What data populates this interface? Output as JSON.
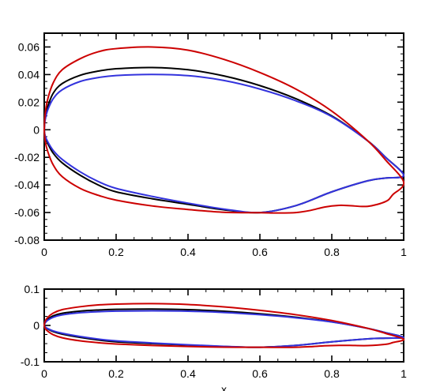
{
  "chart_data": [
    {
      "type": "line",
      "title": "",
      "xlabel": "",
      "ylabel": "",
      "xlim": [
        0,
        1
      ],
      "ylim": [
        -0.08,
        0.07
      ],
      "xticks": [
        "0",
        "0.2",
        "0.4",
        "0.6",
        "0.8",
        "1"
      ],
      "yticks": [
        "-0.08",
        "-0.06",
        "-0.04",
        "-0.02",
        "0",
        "0.02",
        "0.04",
        "0.06"
      ],
      "grid": false,
      "series": [
        {
          "color": "#000000",
          "x": [
            0,
            0.0025,
            0.01,
            0.025,
            0.05,
            0.1,
            0.15,
            0.2,
            0.3,
            0.4,
            0.5,
            0.6,
            0.7,
            0.8,
            0.9,
            0.95,
            1.0,
            0.95,
            0.9,
            0.8,
            0.7,
            0.6,
            0.5,
            0.4,
            0.3,
            0.2,
            0.15,
            0.1,
            0.05,
            0.025,
            0.01,
            0.0025,
            0
          ],
          "y": [
            0,
            0.0085,
            0.017,
            0.0265,
            0.0335,
            0.0395,
            0.0425,
            0.0442,
            0.0451,
            0.0435,
            0.039,
            0.032,
            0.0225,
            0.01,
            -0.008,
            -0.02,
            -0.033,
            -0.035,
            -0.037,
            -0.045,
            -0.055,
            -0.06,
            -0.058,
            -0.054,
            -0.05,
            -0.045,
            -0.04,
            -0.033,
            -0.024,
            -0.017,
            -0.01,
            -0.005,
            0
          ]
        },
        {
          "color": "#3333dd",
          "x": [
            0,
            0.0025,
            0.01,
            0.025,
            0.05,
            0.1,
            0.15,
            0.2,
            0.3,
            0.4,
            0.5,
            0.6,
            0.7,
            0.8,
            0.9,
            0.95,
            1.0,
            0.95,
            0.9,
            0.8,
            0.7,
            0.6,
            0.5,
            0.4,
            0.3,
            0.2,
            0.15,
            0.1,
            0.05,
            0.025,
            0.01,
            0.0025,
            0
          ],
          "y": [
            0,
            0.007,
            0.0145,
            0.0225,
            0.029,
            0.035,
            0.0378,
            0.0393,
            0.0401,
            0.0392,
            0.0357,
            0.0295,
            0.021,
            0.0095,
            -0.0081,
            -0.0201,
            -0.033,
            -0.035,
            -0.037,
            -0.045,
            -0.055,
            -0.06,
            -0.0575,
            -0.0532,
            -0.0483,
            -0.0425,
            -0.0375,
            -0.0305,
            -0.0215,
            -0.015,
            -0.0088,
            -0.0043,
            0
          ]
        },
        {
          "color": "#cc0000",
          "x": [
            0,
            0.0025,
            0.01,
            0.025,
            0.05,
            0.1,
            0.15,
            0.2,
            0.3,
            0.4,
            0.5,
            0.6,
            0.7,
            0.8,
            0.9,
            0.95,
            1.0,
            0.97,
            0.95,
            0.9,
            0.85,
            0.82,
            0.78,
            0.74,
            0.7,
            0.65,
            0.6,
            0.5,
            0.4,
            0.3,
            0.2,
            0.15,
            0.1,
            0.05,
            0.025,
            0.01,
            0.0025,
            0
          ],
          "y": [
            0,
            0.0115,
            0.0225,
            0.034,
            0.0435,
            0.0515,
            0.0565,
            0.0588,
            0.06,
            0.0577,
            0.051,
            0.0415,
            0.0295,
            0.0135,
            -0.008,
            -0.022,
            -0.038,
            -0.047,
            -0.052,
            -0.0555,
            -0.055,
            -0.0548,
            -0.056,
            -0.0585,
            -0.06,
            -0.0603,
            -0.0601,
            -0.0598,
            -0.0578,
            -0.0552,
            -0.051,
            -0.0475,
            -0.0425,
            -0.034,
            -0.0255,
            -0.016,
            -0.008,
            0
          ]
        }
      ]
    },
    {
      "type": "line",
      "title": "",
      "xlabel": "x",
      "ylabel": "",
      "xlim": [
        0,
        1
      ],
      "ylim": [
        -0.1,
        0.1
      ],
      "xticks": [
        "0",
        "0.2",
        "0.4",
        "0.6",
        "0.8",
        "1"
      ],
      "yticks": [
        "-0.1",
        "0",
        "0.1"
      ],
      "grid": false,
      "series": [
        {
          "color": "#000000",
          "x": [
            0,
            0.0025,
            0.01,
            0.025,
            0.05,
            0.1,
            0.15,
            0.2,
            0.3,
            0.4,
            0.5,
            0.6,
            0.7,
            0.8,
            0.9,
            0.95,
            1.0,
            0.95,
            0.9,
            0.8,
            0.7,
            0.6,
            0.5,
            0.4,
            0.3,
            0.2,
            0.15,
            0.1,
            0.05,
            0.025,
            0.01,
            0.0025,
            0
          ],
          "y": [
            0,
            0.0085,
            0.017,
            0.0265,
            0.0335,
            0.0395,
            0.0425,
            0.0442,
            0.0451,
            0.0435,
            0.039,
            0.032,
            0.0225,
            0.01,
            -0.008,
            -0.02,
            -0.033,
            -0.035,
            -0.037,
            -0.045,
            -0.055,
            -0.06,
            -0.058,
            -0.054,
            -0.05,
            -0.045,
            -0.04,
            -0.033,
            -0.024,
            -0.017,
            -0.01,
            -0.005,
            0
          ]
        },
        {
          "color": "#3333dd",
          "x": [
            0,
            0.0025,
            0.01,
            0.025,
            0.05,
            0.1,
            0.15,
            0.2,
            0.3,
            0.4,
            0.5,
            0.6,
            0.7,
            0.8,
            0.9,
            0.95,
            1.0,
            0.95,
            0.9,
            0.8,
            0.7,
            0.6,
            0.5,
            0.4,
            0.3,
            0.2,
            0.15,
            0.1,
            0.05,
            0.025,
            0.01,
            0.0025,
            0
          ],
          "y": [
            0,
            0.007,
            0.0145,
            0.0225,
            0.029,
            0.035,
            0.0378,
            0.0393,
            0.0401,
            0.0392,
            0.0357,
            0.0295,
            0.021,
            0.0095,
            -0.0081,
            -0.0201,
            -0.033,
            -0.035,
            -0.037,
            -0.045,
            -0.055,
            -0.06,
            -0.0575,
            -0.0532,
            -0.0483,
            -0.0425,
            -0.0375,
            -0.0305,
            -0.0215,
            -0.015,
            -0.0088,
            -0.0043,
            0
          ]
        },
        {
          "color": "#cc0000",
          "x": [
            0,
            0.0025,
            0.01,
            0.025,
            0.05,
            0.1,
            0.15,
            0.2,
            0.3,
            0.4,
            0.5,
            0.6,
            0.7,
            0.8,
            0.9,
            0.95,
            1.0,
            0.97,
            0.95,
            0.9,
            0.85,
            0.82,
            0.78,
            0.74,
            0.7,
            0.65,
            0.6,
            0.5,
            0.4,
            0.3,
            0.2,
            0.15,
            0.1,
            0.05,
            0.025,
            0.01,
            0.0025,
            0
          ],
          "y": [
            0,
            0.0115,
            0.0225,
            0.034,
            0.0435,
            0.0515,
            0.0565,
            0.0588,
            0.06,
            0.0577,
            0.051,
            0.0415,
            0.0295,
            0.0135,
            -0.008,
            -0.022,
            -0.038,
            -0.047,
            -0.052,
            -0.0555,
            -0.055,
            -0.0548,
            -0.056,
            -0.0585,
            -0.06,
            -0.0603,
            -0.0601,
            -0.0598,
            -0.0578,
            -0.0552,
            -0.051,
            -0.0475,
            -0.0425,
            -0.034,
            -0.0255,
            -0.016,
            -0.008,
            0
          ]
        }
      ]
    }
  ]
}
